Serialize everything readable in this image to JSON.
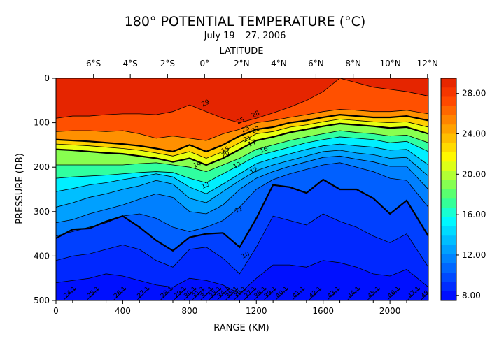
{
  "chart_data": {
    "type": "heatmap",
    "title": "180° POTENTIAL TEMPERATURE (°C)",
    "subtitle": "July 19 – 27, 2006",
    "xlabel": "RANGE (KM)",
    "ylabel": "PRESSURE (DB)",
    "top_axis_label": "LATITUDE",
    "xlim": [
      0,
      2230
    ],
    "ylim": [
      500,
      0
    ],
    "x_ticks": [
      0,
      400,
      800,
      1200,
      1600,
      2000
    ],
    "x_tick_labels": [
      "0",
      "400",
      "800",
      "1200",
      "1600",
      "2000"
    ],
    "y_ticks": [
      0,
      100,
      200,
      300,
      400,
      500
    ],
    "y_tick_labels": [
      "0",
      "100",
      "200",
      "300",
      "400",
      "500"
    ],
    "latitude_ticks": [
      {
        "label": "6°S",
        "range_km": 225
      },
      {
        "label": "4°S",
        "range_km": 445
      },
      {
        "label": "2°S",
        "range_km": 668
      },
      {
        "label": "0°",
        "range_km": 890
      },
      {
        "label": "2°N",
        "range_km": 1112
      },
      {
        "label": "4°N",
        "range_km": 1335
      },
      {
        "label": "6°N",
        "range_km": 1557
      },
      {
        "label": "8°N",
        "range_km": 1780
      },
      {
        "label": "10°N",
        "range_km": 2002
      },
      {
        "label": "12°N",
        "range_km": 2225
      }
    ],
    "colorbar_ticks": [
      "28.00",
      "24.00",
      "20.00",
      "16.00",
      "12.00",
      "8.00"
    ],
    "colorbar_range": [
      7.5,
      29.5
    ],
    "colorscale": [
      "#0000ff",
      "#0040ff",
      "#0080ff",
      "#00bfff",
      "#00ffff",
      "#40ff80",
      "#a0ff40",
      "#ffff00",
      "#ffbf00",
      "#ff8000",
      "#ff4000",
      "#e02000"
    ],
    "range_km": [
      0,
      100,
      200,
      300,
      400,
      500,
      600,
      700,
      800,
      900,
      1000,
      1100,
      1200,
      1300,
      1400,
      1500,
      1600,
      1700,
      1800,
      1900,
      2000,
      2100,
      2230
    ],
    "isotherms": [
      {
        "temp": 28,
        "pressure": [
          90,
          85,
          85,
          82,
          80,
          80,
          82,
          75,
          60,
          75,
          90,
          100,
          90,
          78,
          65,
          50,
          30,
          0,
          10,
          20,
          25,
          30,
          40
        ]
      },
      {
        "temp": 26,
        "pressure": [
          120,
          118,
          118,
          120,
          118,
          125,
          135,
          130,
          135,
          140,
          125,
          115,
          100,
          95,
          88,
          82,
          75,
          70,
          72,
          75,
          75,
          72,
          80
        ]
      },
      {
        "temp": 24,
        "pressure": [
          138,
          140,
          142,
          145,
          148,
          152,
          158,
          165,
          150,
          165,
          150,
          130,
          115,
          110,
          100,
          95,
          88,
          82,
          85,
          88,
          88,
          85,
          95
        ]
      },
      {
        "temp": 22,
        "pressure": [
          148,
          150,
          152,
          155,
          158,
          162,
          168,
          175,
          165,
          180,
          165,
          145,
          125,
          120,
          110,
          105,
          98,
          92,
          95,
          98,
          100,
          98,
          110
        ]
      },
      {
        "temp": 20,
        "pressure": [
          160,
          162,
          165,
          168,
          170,
          175,
          180,
          188,
          180,
          195,
          180,
          160,
          140,
          132,
          122,
          115,
          108,
          102,
          105,
          108,
          112,
          110,
          125
        ]
      },
      {
        "temp": 18,
        "pressure": [
          195,
          195,
          195,
          195,
          195,
          192,
          190,
          195,
          200,
          210,
          195,
          180,
          160,
          150,
          140,
          132,
          125,
          118,
          122,
          125,
          130,
          128,
          145
        ]
      },
      {
        "temp": 16,
        "pressure": [
          225,
          222,
          220,
          218,
          215,
          212,
          210,
          212,
          225,
          235,
          215,
          195,
          175,
          165,
          155,
          145,
          138,
          132,
          135,
          138,
          145,
          142,
          165
        ]
      },
      {
        "temp": 14,
        "pressure": [
          255,
          248,
          240,
          235,
          228,
          222,
          215,
          222,
          245,
          260,
          238,
          215,
          192,
          180,
          170,
          160,
          152,
          148,
          152,
          155,
          162,
          160,
          195
        ]
      },
      {
        "temp": 13,
        "pressure": [
          290,
          280,
          268,
          260,
          250,
          242,
          230,
          238,
          270,
          280,
          255,
          230,
          208,
          195,
          185,
          175,
          165,
          162,
          168,
          172,
          180,
          178,
          220
        ]
      },
      {
        "temp": 12,
        "pressure": [
          325,
          318,
          305,
          295,
          285,
          272,
          260,
          268,
          300,
          305,
          285,
          250,
          225,
          210,
          198,
          188,
          178,
          175,
          182,
          188,
          198,
          198,
          250
        ]
      },
      {
        "temp": 11,
        "pressure": [
          355,
          345,
          335,
          325,
          310,
          305,
          315,
          335,
          345,
          335,
          320,
          290,
          250,
          228,
          215,
          205,
          195,
          190,
          200,
          210,
          225,
          230,
          290
        ]
      },
      {
        "temp": 10,
        "pressure": [
          360,
          340,
          338,
          322,
          310,
          335,
          365,
          388,
          358,
          350,
          348,
          380,
          315,
          240,
          245,
          258,
          228,
          250,
          250,
          270,
          305,
          275,
          355
        ]
      },
      {
        "temp": 9,
        "pressure": [
          410,
          400,
          395,
          385,
          375,
          385,
          410,
          425,
          385,
          380,
          405,
          440,
          380,
          310,
          320,
          330,
          305,
          322,
          335,
          355,
          370,
          350,
          425
        ]
      },
      {
        "temp": 8.5,
        "pressure": [
          460,
          455,
          450,
          440,
          445,
          455,
          465,
          470,
          450,
          455,
          465,
          485,
          450,
          420,
          420,
          425,
          410,
          415,
          425,
          440,
          445,
          430,
          470
        ]
      }
    ],
    "isotherm_labels": [
      {
        "text": "29",
        "range_km": 900,
        "pressure": 60
      },
      {
        "text": "28",
        "range_km": 1200,
        "pressure": 85
      },
      {
        "text": "25",
        "range_km": 1110,
        "pressure": 100
      },
      {
        "text": "23",
        "range_km": 1140,
        "pressure": 118
      },
      {
        "text": "22",
        "range_km": 1200,
        "pressure": 120
      },
      {
        "text": "21",
        "range_km": 1150,
        "pressure": 140
      },
      {
        "text": "20",
        "range_km": 1020,
        "pressure": 175
      },
      {
        "text": "17",
        "range_km": 1180,
        "pressure": 150
      },
      {
        "text": "16",
        "range_km": 1250,
        "pressure": 165
      },
      {
        "text": "15",
        "range_km": 1020,
        "pressure": 165
      },
      {
        "text": "14",
        "range_km": 850,
        "pressure": 198
      },
      {
        "text": "13",
        "range_km": 900,
        "pressure": 245
      },
      {
        "text": "12",
        "range_km": 1090,
        "pressure": 200
      },
      {
        "text": "12",
        "range_km": 1190,
        "pressure": 212
      },
      {
        "text": "11",
        "range_km": 1100,
        "pressure": 300
      },
      {
        "text": "10",
        "range_km": 1140,
        "pressure": 402
      }
    ],
    "sigma_labels": [
      {
        "text": "24.1",
        "range_km": 60
      },
      {
        "text": "25.1",
        "range_km": 200
      },
      {
        "text": "26.1",
        "range_km": 360
      },
      {
        "text": "27.1",
        "range_km": 500
      },
      {
        "text": "28.1",
        "range_km": 640
      },
      {
        "text": "29.1",
        "range_km": 720
      },
      {
        "text": "30.1",
        "range_km": 780
      },
      {
        "text": "31.1",
        "range_km": 830
      },
      {
        "text": "32.1",
        "range_km": 880
      },
      {
        "text": "33.1",
        "range_km": 930
      },
      {
        "text": "34.1",
        "range_km": 980
      },
      {
        "text": "35.1",
        "range_km": 1030
      },
      {
        "text": "36.1",
        "range_km": 1080
      },
      {
        "text": "37.1",
        "range_km": 1140
      },
      {
        "text": "38.1",
        "range_km": 1200
      },
      {
        "text": "39.1",
        "range_km": 1260
      },
      {
        "text": "40.1",
        "range_km": 1330
      },
      {
        "text": "41.1",
        "range_km": 1430
      },
      {
        "text": "42.1",
        "range_km": 1530
      },
      {
        "text": "43.1",
        "range_km": 1640
      },
      {
        "text": "44.1",
        "range_km": 1760
      },
      {
        "text": "45.1",
        "range_km": 1880
      },
      {
        "text": "46.1",
        "range_km": 2000
      },
      {
        "text": "47.1",
        "range_km": 2120
      },
      {
        "text": "48.1",
        "range_km": 2200
      },
      {
        "text": "49.1",
        "range_km": 2250
      },
      {
        "text": "50.1",
        "range_km": 2300
      }
    ]
  }
}
